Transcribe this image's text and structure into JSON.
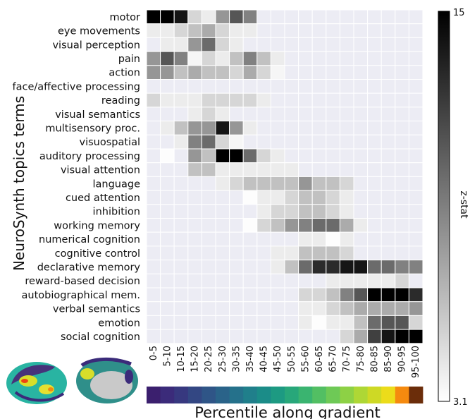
{
  "chart_data": {
    "type": "heatmap",
    "ylabel": "NeuroSynth topics terms",
    "xlabel": "Percentile along gradient",
    "colorbar": {
      "label": "z-stat",
      "max": 15,
      "min": 3.1,
      "max_label": "15",
      "min_label": "3.1",
      "high_color": "#000000",
      "low_color": "#ffffff"
    },
    "empty_color": "#ececf4",
    "gradient_colors": [
      "#3b1f6e",
      "#3b2b7a",
      "#37387f",
      "#334783",
      "#2f5587",
      "#2a6389",
      "#25718b",
      "#207f8b",
      "#1b8c88",
      "#1d9a82",
      "#28a77a",
      "#3ab470",
      "#52bf63",
      "#6ec956",
      "#8dd145",
      "#aed735",
      "#ced925",
      "#ecdc1a",
      "#f58a0f",
      "#6b2d0a"
    ],
    "x": [
      "0-5",
      "5-10",
      "10-15",
      "15-20",
      "20-25",
      "25-30",
      "30-35",
      "35-40",
      "40-45",
      "45-50",
      "50-55",
      "55-60",
      "60-65",
      "65-70",
      "70-75",
      "75-80",
      "80-85",
      "85-90",
      "90-95",
      "95-100"
    ],
    "y": [
      "motor",
      "eye movements",
      "visual perception",
      "pain",
      "action",
      "face/affective processing",
      "reading",
      "visual semantics",
      "multisensory proc.",
      "visuospatial",
      "auditory processing",
      "visual attention",
      "language",
      "cued attention",
      "inhibition",
      "working memory",
      "numerical cognition",
      "cognitive control",
      "declarative memory",
      "reward-based decision",
      "autobiographical mem.",
      "verbal semantics",
      "emotion",
      "social cognition"
    ],
    "z": [
      [
        15,
        15,
        14,
        5,
        4,
        8,
        11,
        9,
        null,
        null,
        null,
        null,
        null,
        null,
        null,
        null,
        null,
        null,
        null,
        null
      ],
      [
        4,
        4,
        5,
        6,
        7,
        5,
        4,
        4,
        null,
        null,
        null,
        null,
        null,
        null,
        null,
        null,
        null,
        null,
        null,
        null
      ],
      [
        null,
        4,
        4,
        8,
        10,
        5,
        4,
        null,
        null,
        null,
        null,
        null,
        null,
        null,
        null,
        null,
        null,
        null,
        null,
        null
      ],
      [
        8,
        11,
        9,
        3.5,
        5,
        4,
        6,
        9,
        6,
        4,
        null,
        null,
        null,
        null,
        null,
        null,
        null,
        null,
        null,
        null
      ],
      [
        8,
        8,
        6,
        7,
        6,
        6,
        5,
        7,
        5,
        3.5,
        null,
        null,
        null,
        null,
        null,
        null,
        null,
        null,
        null,
        null
      ],
      [
        null,
        null,
        null,
        null,
        null,
        null,
        null,
        null,
        null,
        null,
        null,
        null,
        null,
        null,
        null,
        null,
        null,
        null,
        null,
        null
      ],
      [
        5,
        4,
        4,
        4,
        5,
        5,
        5,
        5,
        4,
        null,
        null,
        null,
        null,
        null,
        null,
        null,
        null,
        null,
        null,
        null
      ],
      [
        null,
        null,
        null,
        4,
        5,
        4,
        null,
        null,
        null,
        null,
        null,
        null,
        null,
        null,
        null,
        null,
        null,
        null,
        null,
        null
      ],
      [
        null,
        4,
        6,
        8,
        8,
        14,
        8,
        4,
        null,
        null,
        null,
        null,
        null,
        null,
        null,
        null,
        null,
        null,
        null,
        null
      ],
      [
        null,
        null,
        4,
        9,
        10,
        5,
        3.5,
        null,
        null,
        null,
        null,
        null,
        null,
        null,
        null,
        null,
        null,
        null,
        null,
        null
      ],
      [
        null,
        3.2,
        null,
        8,
        6,
        15,
        15,
        10,
        5,
        4,
        null,
        null,
        null,
        null,
        null,
        null,
        null,
        null,
        null,
        null
      ],
      [
        null,
        null,
        null,
        6,
        6,
        4,
        4,
        4,
        4,
        4,
        4,
        null,
        null,
        null,
        null,
        null,
        null,
        null,
        null,
        null
      ],
      [
        null,
        null,
        null,
        null,
        null,
        4,
        5,
        6,
        6,
        6,
        6,
        8,
        6,
        6,
        5,
        null,
        null,
        null,
        null,
        null
      ],
      [
        null,
        null,
        null,
        null,
        null,
        null,
        null,
        3.2,
        4,
        4,
        5,
        6,
        6,
        5,
        4,
        null,
        null,
        null,
        null,
        null
      ],
      [
        null,
        null,
        null,
        null,
        null,
        null,
        null,
        null,
        4,
        5,
        5,
        6,
        6,
        5,
        4,
        null,
        null,
        null,
        null,
        null
      ],
      [
        null,
        null,
        null,
        null,
        null,
        null,
        null,
        3.2,
        5,
        6,
        8,
        9,
        10,
        10,
        7,
        4,
        null,
        null,
        null,
        null
      ],
      [
        null,
        null,
        null,
        null,
        null,
        null,
        null,
        null,
        null,
        null,
        null,
        4,
        4,
        3.2,
        4,
        null,
        null,
        null,
        null,
        null
      ],
      [
        null,
        null,
        null,
        null,
        null,
        null,
        null,
        null,
        null,
        4,
        4,
        6,
        6,
        6,
        5,
        null,
        null,
        null,
        null,
        null
      ],
      [
        null,
        null,
        null,
        null,
        null,
        null,
        null,
        null,
        null,
        4,
        6,
        10,
        13,
        13,
        14,
        14,
        10,
        10,
        9,
        9
      ],
      [
        null,
        null,
        null,
        null,
        null,
        null,
        null,
        null,
        null,
        null,
        null,
        null,
        null,
        4,
        4,
        4,
        4,
        4,
        5,
        null
      ],
      [
        null,
        null,
        null,
        null,
        null,
        null,
        null,
        null,
        null,
        null,
        null,
        5,
        5,
        6,
        9,
        11,
        15,
        15,
        15,
        13
      ],
      [
        null,
        null,
        null,
        null,
        null,
        null,
        null,
        null,
        null,
        null,
        null,
        4,
        4,
        5,
        6,
        7,
        7,
        7,
        7,
        8
      ],
      [
        null,
        null,
        null,
        null,
        null,
        null,
        null,
        null,
        null,
        null,
        null,
        4,
        3.2,
        4,
        4,
        6,
        10,
        11,
        11,
        5
      ],
      [
        null,
        null,
        null,
        null,
        null,
        null,
        null,
        null,
        null,
        null,
        null,
        null,
        null,
        null,
        5,
        7,
        12,
        14,
        15,
        15
      ]
    ]
  }
}
